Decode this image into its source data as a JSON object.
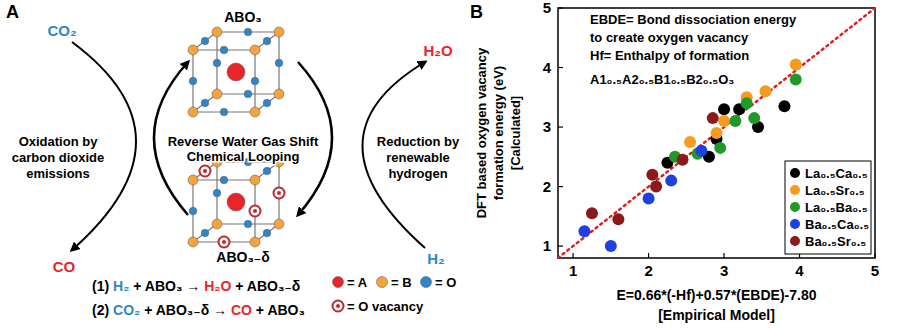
{
  "chart_data": {
    "type": "scatter",
    "title": "B",
    "x_label": [
      "E=0.66*(-Hf)+0.57*(EBDE)-7.80",
      "[Empirical Model]"
    ],
    "y_label": [
      "DFT based oxygen vacancy",
      "formation energy (eV)",
      "[Calculated]"
    ],
    "annotations": [
      "EBDE= Bond dissociation energy",
      "to create oxygen vacancy",
      "Hf= Enthalpy of formation",
      "A1₀.₅A2₀.₅B1₀.₅B2₀.₅O₃"
    ],
    "xlim": [
      0.8,
      5
    ],
    "ylim": [
      0.8,
      5
    ],
    "xticks": [
      1,
      2,
      3,
      4,
      5
    ],
    "yticks": [
      1,
      2,
      3,
      4,
      5
    ],
    "grid": false,
    "legend": "lower right",
    "marker": "circle",
    "series": [
      {
        "name": "La₀.₅Ca₀.₅",
        "color": "#000000",
        "x": [
          2.25,
          2.8,
          2.9,
          3.0,
          3.2,
          3.45,
          3.8
        ],
        "values": [
          2.4,
          2.5,
          2.8,
          3.3,
          3.3,
          3.0,
          3.35
        ]
      },
      {
        "name": "La₀.₅Sr₀.₅",
        "color": "#f39c1f",
        "x": [
          2.55,
          2.9,
          3.0,
          3.3,
          3.55,
          3.95
        ],
        "values": [
          2.75,
          2.9,
          3.1,
          3.5,
          3.6,
          4.05
        ]
      },
      {
        "name": "La₀.₅Ba₀.₅",
        "color": "#1e9a2a",
        "x": [
          2.35,
          2.65,
          2.95,
          3.15,
          3.3,
          3.4,
          3.95
        ],
        "values": [
          2.5,
          2.55,
          2.65,
          3.1,
          3.4,
          3.15,
          3.8
        ]
      },
      {
        "name": "Ba₀.₅Ca₀.₅",
        "color": "#1f3fe0",
        "x": [
          1.15,
          1.5,
          2.0,
          2.3,
          2.7
        ],
        "values": [
          1.25,
          1.0,
          1.8,
          2.1,
          2.6
        ]
      },
      {
        "name": "Ba₀.₅Sr₀.₅",
        "color": "#8b1a1a",
        "x": [
          1.25,
          1.6,
          2.05,
          2.1,
          2.45,
          2.85
        ],
        "values": [
          1.55,
          1.45,
          2.2,
          2.0,
          2.45,
          3.15
        ]
      }
    ]
  },
  "diagram": {
    "panel_label": "A",
    "top_state": "ABO₃",
    "bottom_state": "ABO₃₋δ",
    "center_label": [
      "Reverse Water Gas Shift",
      "Chemical Looping"
    ],
    "left_in": {
      "text": "CO₂",
      "color": "#2f86c8"
    },
    "left_out": {
      "text": "CO",
      "color": "#e8262a"
    },
    "right_in": {
      "text": "H₂",
      "color": "#2f86c8"
    },
    "right_out": {
      "text": "H₂O",
      "color": "#e8262a"
    },
    "left_process": [
      "Oxidation by",
      "carbon dioxide",
      "emissions"
    ],
    "right_process": [
      "Reduction by",
      "renewable",
      "hydrogen"
    ],
    "equations": [
      [
        {
          "text": "(1)",
          "color": "#000000"
        },
        {
          "text": "H₂",
          "color": "#2f86c8"
        },
        {
          "text": "+",
          "color": "#000000"
        },
        {
          "text": "ABO₃",
          "color": "#000000"
        },
        {
          "text": "→",
          "color": "#000000"
        },
        {
          "text": "H₂O",
          "color": "#e8262a"
        },
        {
          "text": "+",
          "color": "#000000"
        },
        {
          "text": "ABO₃₋δ",
          "color": "#000000"
        }
      ],
      [
        {
          "text": "(2)",
          "color": "#000000"
        },
        {
          "text": "CO₂",
          "color": "#2f86c8"
        },
        {
          "text": "+",
          "color": "#000000"
        },
        {
          "text": "ABO₃₋δ",
          "color": "#000000"
        },
        {
          "text": "→",
          "color": "#000000"
        },
        {
          "text": "CO",
          "color": "#e8262a"
        },
        {
          "text": "+",
          "color": "#000000"
        },
        {
          "text": "ABO₃",
          "color": "#000000"
        }
      ]
    ],
    "legend": [
      {
        "label": "= A",
        "color": "#e8262a",
        "marker": "dot"
      },
      {
        "label": "= B",
        "color": "#f5a33a",
        "marker": "dot"
      },
      {
        "label": "= O",
        "color": "#2f86c8",
        "marker": "dot"
      },
      {
        "label": "= O vacancy",
        "color": "#c0282d",
        "marker": "ring"
      }
    ]
  }
}
